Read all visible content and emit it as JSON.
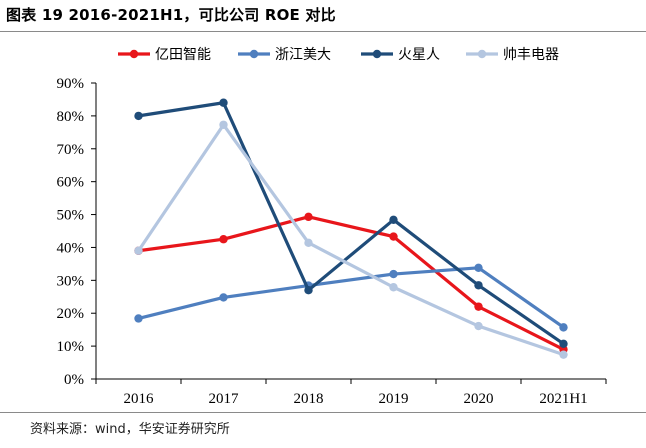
{
  "title": "图表 19 2016-2021H1，可比公司 ROE 对比",
  "source": "资料来源：wind，华安证券研究所",
  "chart_data": {
    "type": "line",
    "title": "图表 19 2016-2021H1，可比公司 ROE 对比",
    "xlabel": "",
    "ylabel": "",
    "categories": [
      "2016",
      "2017",
      "2018",
      "2019",
      "2020",
      "2021H1"
    ],
    "ylim": [
      0,
      90
    ],
    "yticks": [
      0,
      10,
      20,
      30,
      40,
      50,
      60,
      70,
      80,
      90
    ],
    "ytick_labels": [
      "0%",
      "10%",
      "20%",
      "30%",
      "40%",
      "50%",
      "60%",
      "70%",
      "80%",
      "90%"
    ],
    "legend_position": "top",
    "series": [
      {
        "name": "亿田智能",
        "color": "#e8161b",
        "values": [
          39.0,
          42.5,
          49.3,
          43.3,
          22.0,
          9.0
        ]
      },
      {
        "name": "浙江美大",
        "color": "#4f7fbf",
        "values": [
          18.4,
          24.8,
          28.4,
          31.9,
          33.8,
          15.7
        ]
      },
      {
        "name": "火星人",
        "color": "#1f4c79",
        "values": [
          80.0,
          84.0,
          27.0,
          48.4,
          28.5,
          10.7
        ]
      },
      {
        "name": "帅丰电器",
        "color": "#b4c6e0",
        "values": [
          39.0,
          77.3,
          41.4,
          27.9,
          16.1,
          7.4
        ]
      }
    ]
  }
}
